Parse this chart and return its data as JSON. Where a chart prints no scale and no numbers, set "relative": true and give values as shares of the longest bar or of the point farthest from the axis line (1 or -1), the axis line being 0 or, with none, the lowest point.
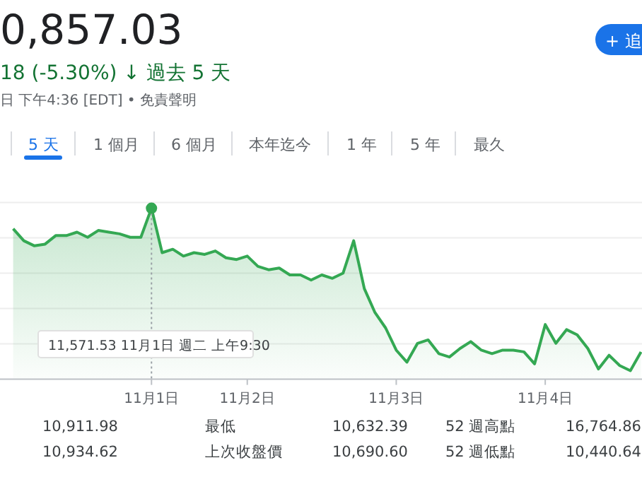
{
  "chart_data": {
    "type": "area",
    "title": "0,857.03",
    "subtitle": "18 (-5.30%) ↓ 過去 5 天",
    "annotations": [
      "日 下午4:36 [EDT] • 免責聲明",
      "+ 追",
      "5 天",
      "1 個月",
      "6 個月",
      "本年迄今",
      "1 年",
      "5 年",
      "最久",
      "10,911.98",
      "最低",
      "10,632.39",
      "52 週高點",
      "16,764.86",
      "10,934.62",
      "上次收盤價",
      "10,690.60",
      "52 週低點",
      "10,440.64",
      "11,571.53  11月1日 週二 上午9:30"
    ],
    "relative": true,
    "color": "#34a853",
    "grid": true,
    "categories": [
      null,
      null,
      null,
      null,
      null,
      null,
      null,
      null,
      null,
      null,
      null,
      null,
      null,
      "11月1日",
      null,
      null,
      null,
      null,
      null,
      null,
      null,
      null,
      "11月2日",
      null,
      null,
      null,
      null,
      null,
      null,
      null,
      null,
      null,
      null,
      null,
      null,
      null,
      "11月3日",
      null,
      null,
      null,
      null,
      null,
      null,
      null,
      null,
      null,
      null,
      null,
      null,
      null,
      "11月4日",
      null,
      null,
      null,
      null,
      null,
      null,
      null,
      null,
      null
    ],
    "values": [
      0.88,
      0.81,
      0.78,
      0.79,
      0.84,
      0.84,
      0.86,
      0.83,
      0.87,
      0.86,
      0.85,
      0.83,
      0.83,
      1,
      0.74,
      0.76,
      0.72,
      0.74,
      0.73,
      0.75,
      0.71,
      0.7,
      0.72,
      0.66,
      0.64,
      0.65,
      0.61,
      0.61,
      0.58,
      0.61,
      0.59,
      0.62,
      0.81,
      0.53,
      0.39,
      0.3,
      0.17,
      0.1,
      0.21,
      0.23,
      0.15,
      0.13,
      0.18,
      0.22,
      0.17,
      0.15,
      0.17,
      0.17,
      0.16,
      0.09,
      0.32,
      0.21,
      0.29,
      0.26,
      0.18,
      0.06,
      0.14,
      0.08,
      0.05,
      0.16
    ]
  }
}
